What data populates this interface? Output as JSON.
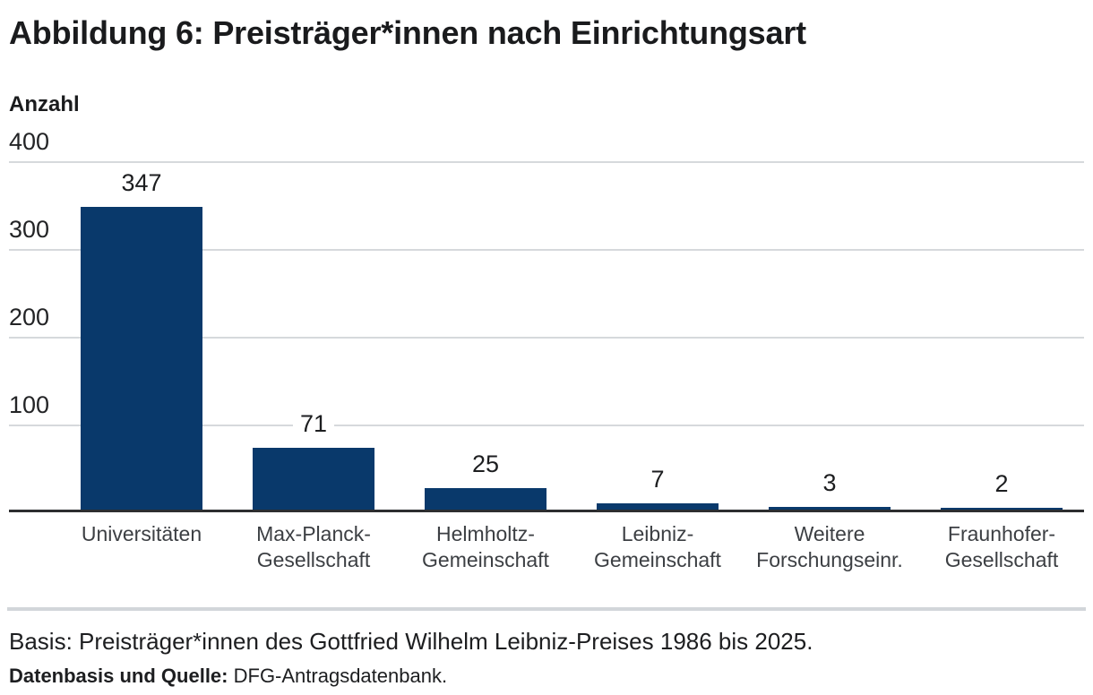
{
  "title": "Abbildung 6: Preisträger*innen nach Einrichtungsart",
  "axis_title": "Anzahl",
  "footer": {
    "basis": "Basis: Preisträger*innen des Gottfried Wilhelm Leibniz-Preises 1986 bis 2025.",
    "source_label": "Datenbasis und Quelle:",
    "source_value": " DFG-Antragsdatenbank."
  },
  "colors": {
    "bar": "#09396b",
    "gridline": "#d6d9dc",
    "axis_line": "#2d2e30",
    "divider": "#d2d6da",
    "category_label": "#3c3f43",
    "text": "#1a1b1d"
  },
  "chart_data": {
    "type": "bar",
    "title": "Abbildung 6: Preisträger*innen nach Einrichtungsart",
    "categories": [
      "Universitäten",
      "Max-Planck-\nGesellschaft",
      "Helmholtz-\nGemeinschaft",
      "Leibniz-\nGemeinschaft",
      "Weitere\nForschungseinr.",
      "Fraunhofer-\nGesellschaft"
    ],
    "values": [
      347,
      71,
      25,
      7,
      3,
      2
    ],
    "value_labels": [
      "347",
      "71",
      "25",
      "7",
      "3",
      "2"
    ],
    "xlabel": "",
    "ylabel": "Anzahl",
    "ylim": [
      0,
      400
    ],
    "yticks": [
      100,
      200,
      300,
      400
    ],
    "grid": true,
    "legend": false,
    "bar_color": "#09396b"
  }
}
